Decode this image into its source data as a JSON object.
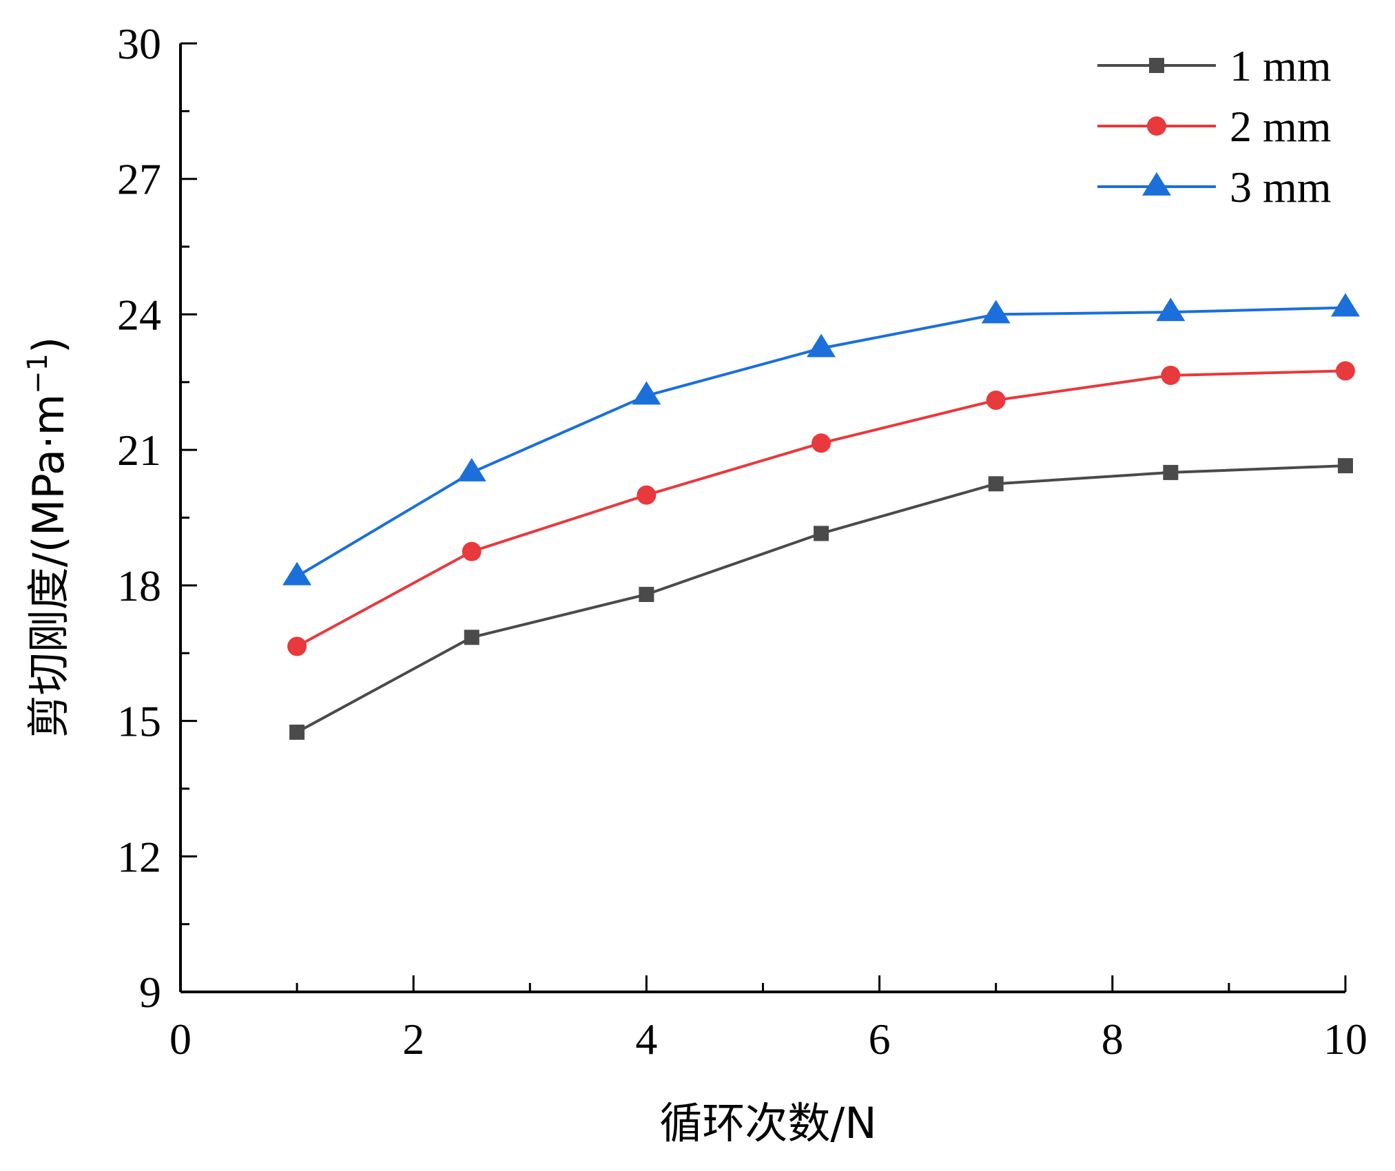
{
  "chart_data": {
    "type": "line",
    "title": "",
    "xlabel": "循环次数/N",
    "ylabel": "剪切刚度/(MPa·m",
    "ylabel_sup": "−1",
    "ylabel_end": ")",
    "xlim": [
      0,
      10
    ],
    "ylim": [
      9,
      30
    ],
    "x_major_ticks": [
      0,
      2,
      4,
      6,
      8,
      10
    ],
    "x_minor_ticks": [
      1,
      3,
      5,
      7,
      9
    ],
    "y_major_ticks": [
      9,
      12,
      15,
      18,
      21,
      24,
      27,
      30
    ],
    "y_minor_ticks": [
      10.5,
      13.5,
      16.5,
      19.5,
      22.5,
      25.5,
      28.5
    ],
    "grid": false,
    "legend_position": "top-right",
    "x": [
      1,
      2.5,
      4,
      5.5,
      7,
      8.5,
      10
    ],
    "series": [
      {
        "name": "1 mm",
        "marker": "square",
        "color": "#4a4a4a",
        "values": [
          14.75,
          16.85,
          17.8,
          19.15,
          20.25,
          20.5,
          20.65
        ]
      },
      {
        "name": "2 mm",
        "marker": "circle",
        "color": "#e8393c",
        "values": [
          16.65,
          18.75,
          20.0,
          21.15,
          22.1,
          22.65,
          22.75
        ]
      },
      {
        "name": "3 mm",
        "marker": "triangle",
        "color": "#1a6fdb",
        "values": [
          18.2,
          20.5,
          22.2,
          23.25,
          24.0,
          24.05,
          24.15
        ]
      }
    ]
  }
}
